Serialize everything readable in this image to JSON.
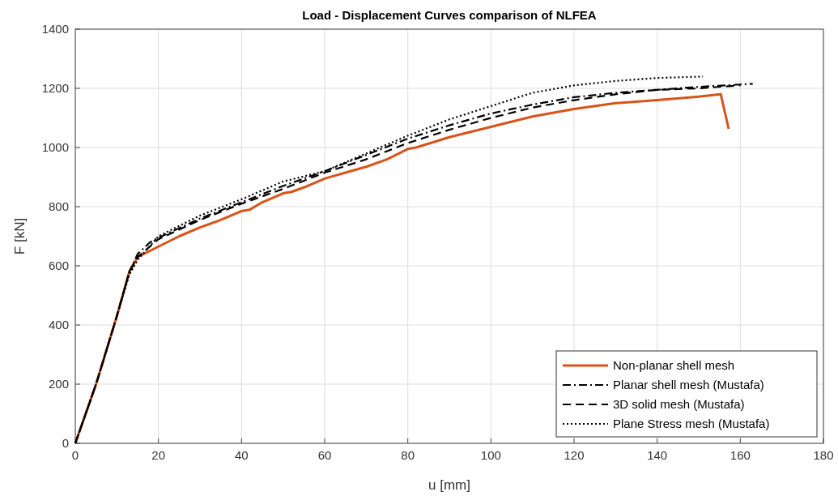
{
  "chart_data": {
    "type": "line",
    "title": "Load - Displacement Curves comparison of NLFEA",
    "xlabel": "u [mm]",
    "ylabel": "F [kN]",
    "xlim": [
      0,
      180
    ],
    "ylim": [
      0,
      1400
    ],
    "xticks": [
      0,
      20,
      40,
      60,
      80,
      100,
      120,
      140,
      160,
      180
    ],
    "yticks": [
      0,
      200,
      400,
      600,
      800,
      1000,
      1200,
      1400
    ],
    "grid": true,
    "legend": "bottom right",
    "series": [
      {
        "name": "Non-planar shell mesh",
        "color": "#d95319",
        "line_style": "solid",
        "x": [
          0,
          5,
          10,
          13,
          15,
          20,
          25,
          30,
          35,
          40,
          42,
          45,
          50,
          52,
          55,
          60,
          65,
          70,
          75,
          80,
          82,
          90,
          100,
          110,
          120,
          130,
          140,
          150,
          155.3,
          157.2
        ],
        "values": [
          0,
          200,
          430,
          580,
          630,
          665,
          700,
          730,
          755,
          785,
          790,
          815,
          845,
          850,
          865,
          895,
          915,
          935,
          960,
          995,
          1000,
          1035,
          1070,
          1105,
          1130,
          1150,
          1160,
          1172,
          1180,
          1063
        ]
      },
      {
        "name": "Planar shell mesh (Mustafa)",
        "color": "#000000",
        "line_style": "dashdot",
        "x": [
          0,
          5,
          10,
          13,
          15,
          18,
          20,
          30,
          40,
          50,
          60,
          70,
          80,
          90,
          100,
          110,
          120,
          130,
          140,
          150,
          160,
          163
        ],
        "values": [
          0,
          200,
          430,
          580,
          640,
          680,
          695,
          760,
          815,
          870,
          920,
          975,
          1030,
          1075,
          1115,
          1145,
          1170,
          1185,
          1195,
          1205,
          1213,
          1215
        ]
      },
      {
        "name": "3D solid mesh (Mustafa)",
        "color": "#000000",
        "line_style": "dashed",
        "x": [
          0,
          5,
          10,
          13,
          15,
          20,
          30,
          40,
          50,
          60,
          70,
          80,
          90,
          100,
          110,
          120,
          130,
          140,
          150,
          160
        ],
        "values": [
          0,
          200,
          430,
          580,
          630,
          690,
          755,
          810,
          860,
          915,
          960,
          1015,
          1060,
          1100,
          1135,
          1160,
          1180,
          1195,
          1200,
          1210
        ]
      },
      {
        "name": "Plane Stress mesh (Mustafa)",
        "color": "#000000",
        "line_style": "dotted",
        "x": [
          0,
          5,
          10,
          13,
          15,
          20,
          30,
          40,
          50,
          60,
          70,
          80,
          90,
          100,
          110,
          120,
          130,
          140,
          151
        ],
        "values": [
          0,
          200,
          430,
          570,
          620,
          700,
          770,
          825,
          885,
          920,
          980,
          1040,
          1095,
          1140,
          1185,
          1210,
          1225,
          1235,
          1240
        ]
      }
    ]
  }
}
